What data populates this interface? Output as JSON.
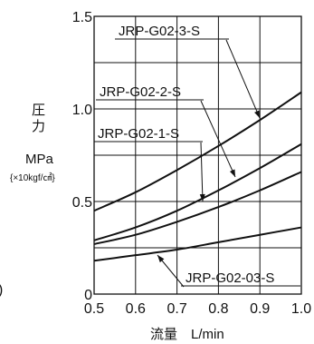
{
  "chart_data": {
    "type": "line",
    "x_ticks": [
      "0.5",
      "0.6",
      "0.7",
      "0.8",
      "0.9",
      "1.0"
    ],
    "y_ticks": [
      "0",
      "0.5",
      "1.0",
      "1.5"
    ],
    "xlim": [
      0.5,
      1.0
    ],
    "ylim": [
      0,
      1.5
    ],
    "xlabel": "流量　L/min",
    "ylabel_line1": "圧",
    "ylabel_line2": "力",
    "ylabel_unit": "MPa",
    "ylabel_sub": "{×10kgf/㎠}",
    "left_edge_mark": ")",
    "grid": true,
    "series": [
      {
        "name": "JRP-G02-3-S",
        "x": [
          0.5,
          0.6,
          0.7,
          0.8,
          0.9,
          1.0
        ],
        "y": [
          0.45,
          0.55,
          0.67,
          0.8,
          0.94,
          1.09
        ]
      },
      {
        "name": "JRP-G02-2-S",
        "x": [
          0.5,
          0.6,
          0.7,
          0.8,
          0.9,
          1.0
        ],
        "y": [
          0.29,
          0.36,
          0.45,
          0.56,
          0.68,
          0.81
        ]
      },
      {
        "name": "JRP-G02-1-S",
        "x": [
          0.5,
          0.6,
          0.7,
          0.8,
          0.9,
          1.0
        ],
        "y": [
          0.27,
          0.32,
          0.39,
          0.47,
          0.56,
          0.66
        ]
      },
      {
        "name": "JRP-G02-03-S",
        "x": [
          0.5,
          0.6,
          0.7,
          0.8,
          0.9,
          1.0
        ],
        "y": [
          0.18,
          0.21,
          0.24,
          0.28,
          0.32,
          0.36
        ]
      }
    ]
  }
}
